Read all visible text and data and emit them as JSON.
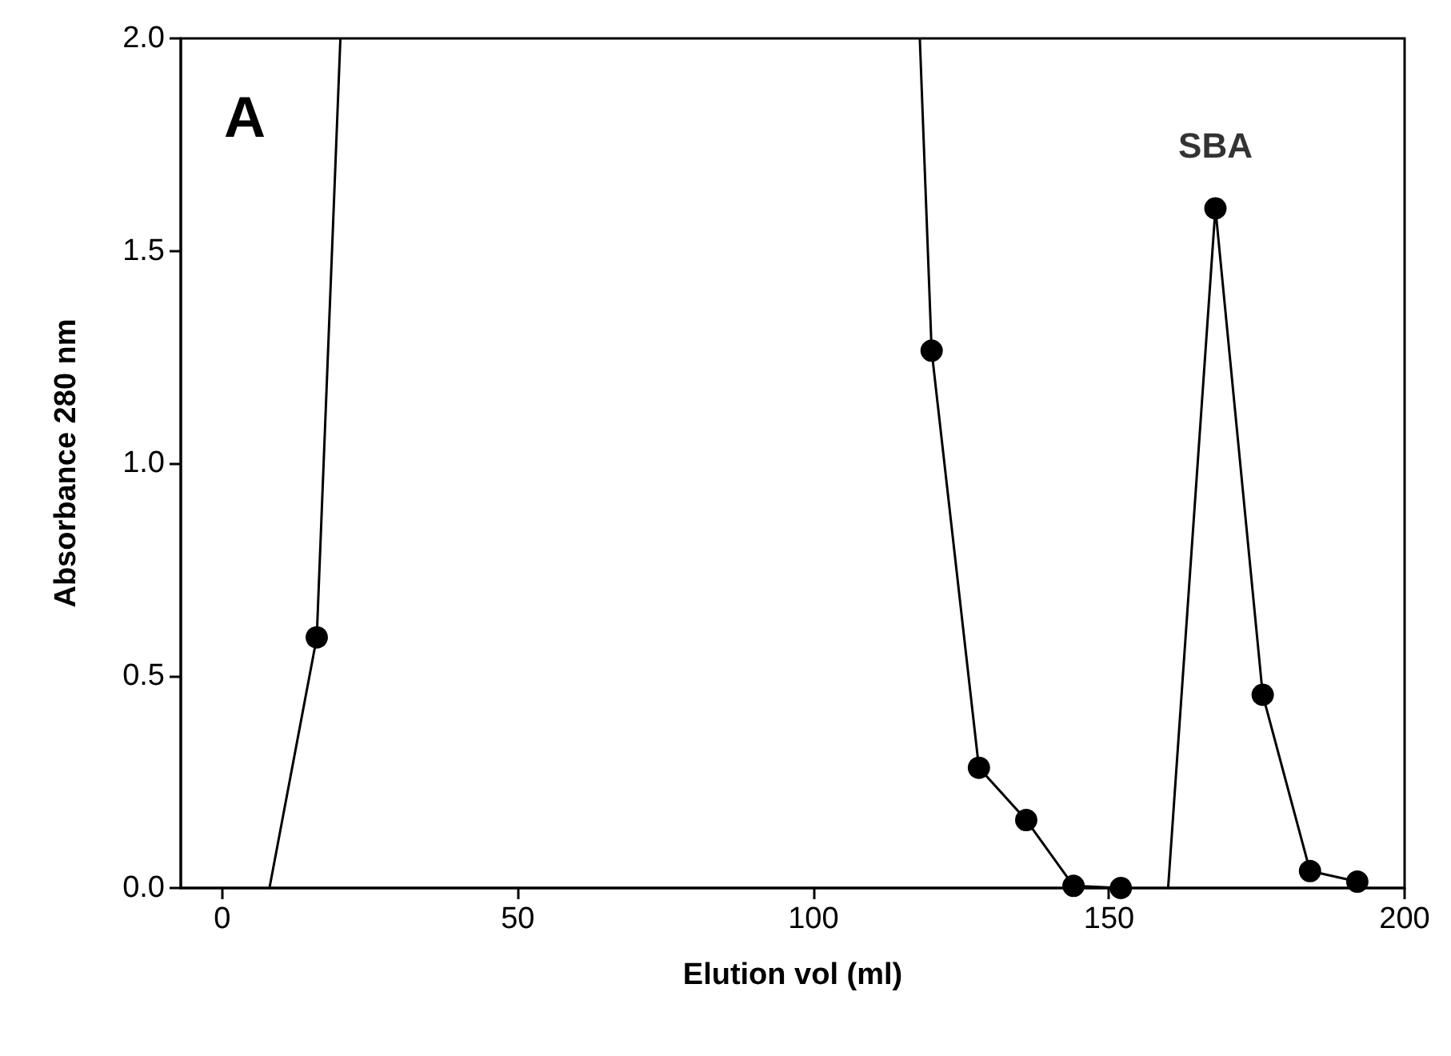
{
  "chart_data": {
    "type": "line",
    "xlabel": "Elution vol (ml)",
    "ylabel": "Absorbance 280 nm",
    "xlim": [
      -7,
      200
    ],
    "xticks": [
      0,
      50,
      100,
      150,
      200
    ],
    "ylim": [
      0,
      2.0
    ],
    "yticks": [
      {
        "value": 0,
        "label": "0.0"
      },
      {
        "value": 0.5,
        "label": "0.5"
      },
      {
        "value": 1,
        "label": "1.0"
      },
      {
        "value": 1.5,
        "label": "1.5"
      },
      {
        "value": 2,
        "label": "2.0"
      }
    ],
    "grid": false,
    "annotations": [
      "A",
      {
        "text": "SBA",
        "x": 168,
        "y": 1.6
      }
    ],
    "series": [
      {
        "color": "#000000",
        "marker": "none",
        "line_style": "solid",
        "x": [
          8,
          16,
          20,
          70,
          118,
          120,
          128,
          136,
          144,
          152,
          156,
          160,
          168,
          176,
          184,
          192
        ],
        "values": [
          0,
          0.59,
          2.0,
          null,
          2.0,
          1.265,
          0.283,
          0.16,
          0.005,
          0,
          null,
          0,
          1.6,
          0.455,
          0.04,
          0.015
        ]
      },
      {
        "type": "scatter",
        "color": "#000000",
        "marker": "circle",
        "x": [
          16,
          120,
          128,
          136,
          144,
          152,
          168,
          176,
          184,
          192
        ],
        "values": [
          0.59,
          1.265,
          0.283,
          0.16,
          0.005,
          0,
          1.6,
          0.455,
          0.04,
          0.015
        ]
      }
    ]
  }
}
